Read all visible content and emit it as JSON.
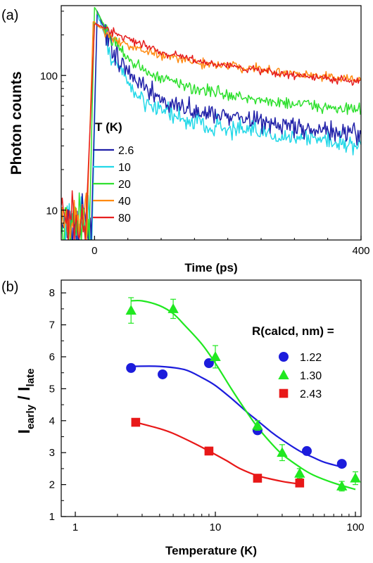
{
  "chart_data": [
    {
      "type": "line",
      "panel_label": "(a)",
      "xlabel": "Time (ps)",
      "ylabel": "Photon counts",
      "xlim": [
        -50,
        400
      ],
      "ylim": [
        6,
        330
      ],
      "yscale": "log",
      "x_ticks": [
        {
          "v": 0,
          "label": "0"
        },
        {
          "v": 400,
          "label": "400"
        }
      ],
      "y_ticks": [
        {
          "v": 10,
          "label": "10"
        },
        {
          "v": 100,
          "label": "100"
        }
      ],
      "legend_title": "T (K)",
      "legend_position": "lower-left",
      "series": [
        {
          "name": "2.6",
          "color": "#1f1fa8",
          "noise": 0.15,
          "rise_x": -5,
          "peak_x": 4,
          "peak_y": 300,
          "decay": [
            [
              4,
              300
            ],
            [
              25,
              160
            ],
            [
              60,
              90
            ],
            [
              100,
              65
            ],
            [
              150,
              55
            ],
            [
              200,
              50
            ],
            [
              250,
              45
            ],
            [
              300,
              42
            ],
            [
              350,
              38
            ],
            [
              400,
              35
            ]
          ]
        },
        {
          "name": "10",
          "color": "#22d8e8",
          "noise": 0.15,
          "rise_x": -4,
          "peak_x": 4,
          "peak_y": 290,
          "decay": [
            [
              4,
              290
            ],
            [
              25,
              140
            ],
            [
              60,
              75
            ],
            [
              100,
              55
            ],
            [
              150,
              45
            ],
            [
              200,
              40
            ],
            [
              250,
              37
            ],
            [
              300,
              35
            ],
            [
              350,
              33
            ],
            [
              400,
              30
            ]
          ]
        },
        {
          "name": "20",
          "color": "#30e030",
          "noise": 0.09,
          "rise_x": -8,
          "peak_x": 0,
          "peak_y": 320,
          "decay": [
            [
              0,
              320
            ],
            [
              25,
              190
            ],
            [
              60,
              120
            ],
            [
              100,
              95
            ],
            [
              150,
              80
            ],
            [
              200,
              72
            ],
            [
              250,
              65
            ],
            [
              300,
              62
            ],
            [
              350,
              58
            ],
            [
              400,
              55
            ]
          ]
        },
        {
          "name": "40",
          "color": "#ff8a10",
          "noise": 0.07,
          "rise_x": -12,
          "peak_x": -2,
          "peak_y": 250,
          "decay": [
            [
              -2,
              250
            ],
            [
              25,
              195
            ],
            [
              60,
              160
            ],
            [
              100,
              140
            ],
            [
              150,
              125
            ],
            [
              200,
              118
            ],
            [
              250,
              110
            ],
            [
              300,
              103
            ],
            [
              350,
              97
            ],
            [
              400,
              92
            ]
          ]
        },
        {
          "name": "80",
          "color": "#e62020",
          "noise": 0.06,
          "rise_x": -14,
          "peak_x": 0,
          "peak_y": 240,
          "decay": [
            [
              0,
              240
            ],
            [
              25,
              215
            ],
            [
              60,
              180
            ],
            [
              100,
              150
            ],
            [
              150,
              130
            ],
            [
              200,
              118
            ],
            [
              250,
              108
            ],
            [
              300,
              100
            ],
            [
              350,
              95
            ],
            [
              400,
              90
            ]
          ]
        }
      ]
    },
    {
      "type": "scatter",
      "panel_label": "(b)",
      "xlabel": "Temperature (K)",
      "ylabel": {
        "base_1": "I",
        "sub_1": "early",
        "sep": " / ",
        "base_2": "I",
        "sub_2": "late"
      },
      "xscale": "log",
      "xlim": [
        1,
        100
      ],
      "ylim": [
        1,
        8.4
      ],
      "x_ticks": [
        {
          "v": 1,
          "label": "1"
        },
        {
          "v": 10,
          "label": "10"
        },
        {
          "v": 100,
          "label": "100"
        }
      ],
      "y_ticks": [
        {
          "v": 1,
          "label": "1"
        },
        {
          "v": 2,
          "label": "2"
        },
        {
          "v": 3,
          "label": "3"
        },
        {
          "v": 4,
          "label": "4"
        },
        {
          "v": 5,
          "label": "5"
        },
        {
          "v": 6,
          "label": "6"
        },
        {
          "v": 7,
          "label": "7"
        },
        {
          "v": 8,
          "label": "8"
        }
      ],
      "legend_title": "R(calcd, nm) =",
      "legend_position": "right",
      "series": [
        {
          "name": "1.22",
          "color": "#1c1cdc",
          "marker": "circle",
          "points": [
            [
              2.5,
              5.65
            ],
            [
              4.2,
              5.45
            ],
            [
              9.0,
              5.8
            ],
            [
              20,
              3.7
            ],
            [
              45,
              3.05
            ],
            [
              80,
              2.65
            ]
          ],
          "errors": [
            0.08,
            0.08,
            0.1,
            0.08,
            0.08,
            0.08
          ],
          "fit": [
            [
              2.5,
              5.7
            ],
            [
              4,
              5.7
            ],
            [
              6,
              5.6
            ],
            [
              8,
              5.35
            ],
            [
              10,
              5.1
            ],
            [
              13,
              4.7
            ],
            [
              17,
              4.25
            ],
            [
              20,
              4.0
            ],
            [
              25,
              3.65
            ],
            [
              30,
              3.4
            ],
            [
              40,
              3.05
            ],
            [
              50,
              2.85
            ],
            [
              60,
              2.7
            ],
            [
              80,
              2.55
            ]
          ]
        },
        {
          "name": "1.30",
          "color": "#20e820",
          "marker": "triangle",
          "points": [
            [
              2.5,
              7.45
            ],
            [
              5.0,
              7.5
            ],
            [
              10,
              6.0
            ],
            [
              20,
              3.85
            ],
            [
              30,
              3.0
            ],
            [
              40,
              2.35
            ],
            [
              80,
              1.95
            ],
            [
              100,
              2.2
            ]
          ],
          "errors": [
            0.4,
            0.3,
            0.35,
            0.15,
            0.25,
            0.15,
            0.15,
            0.2
          ],
          "fit": [
            [
              2.5,
              7.75
            ],
            [
              3,
              7.75
            ],
            [
              4,
              7.6
            ],
            [
              5,
              7.35
            ],
            [
              6,
              7.0
            ],
            [
              8,
              6.4
            ],
            [
              10,
              5.8
            ],
            [
              13,
              5.0
            ],
            [
              16,
              4.4
            ],
            [
              20,
              3.8
            ],
            [
              25,
              3.3
            ],
            [
              30,
              2.95
            ],
            [
              40,
              2.55
            ],
            [
              50,
              2.3
            ],
            [
              70,
              2.05
            ],
            [
              100,
              1.85
            ]
          ]
        },
        {
          "name": "2.43",
          "color": "#e81818",
          "marker": "square",
          "points": [
            [
              2.7,
              3.95
            ],
            [
              9.0,
              3.05
            ],
            [
              20,
              2.2
            ],
            [
              40,
              2.05
            ]
          ],
          "errors": [
            0.05,
            0.05,
            0.05,
            0.05
          ],
          "fit": [
            [
              2.7,
              3.95
            ],
            [
              4,
              3.75
            ],
            [
              5,
              3.6
            ],
            [
              7,
              3.3
            ],
            [
              9,
              3.05
            ],
            [
              12,
              2.75
            ],
            [
              15,
              2.5
            ],
            [
              20,
              2.28
            ],
            [
              30,
              2.1
            ],
            [
              40,
              2.02
            ]
          ]
        }
      ]
    }
  ]
}
